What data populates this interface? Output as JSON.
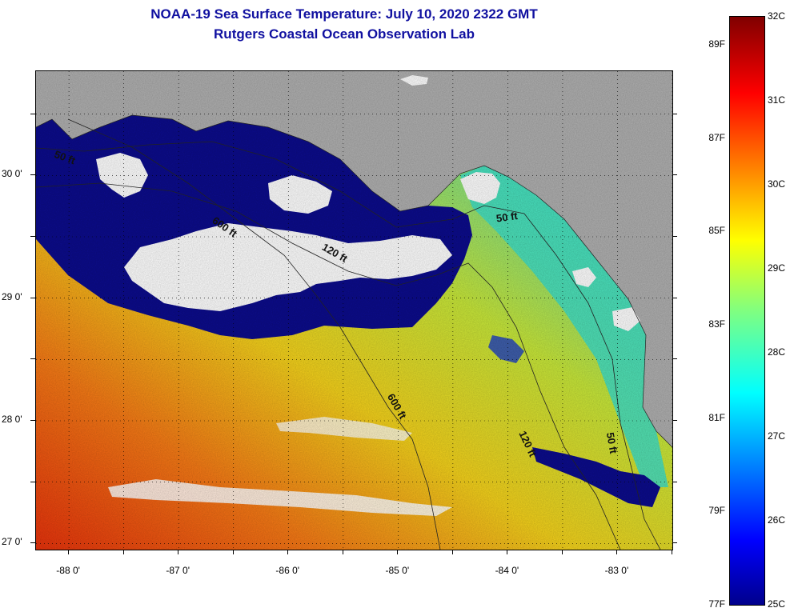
{
  "header": {
    "title": "NOAA-19 Sea Surface Temperature:  July 10, 2020 2322 GMT",
    "subtitle": "Rutgers Coastal Ocean Observation Lab"
  },
  "map": {
    "lon_range": [
      -88.3,
      -82.5
    ],
    "lat_range": [
      26.95,
      30.85
    ],
    "lat_ticks": [
      {
        "value": 30,
        "label": "30 0'"
      },
      {
        "value": 29,
        "label": "29 0'"
      },
      {
        "value": 28,
        "label": "28 0'"
      },
      {
        "value": 27,
        "label": "27 0'"
      }
    ],
    "lon_ticks": [
      {
        "value": -88,
        "label": "-88 0'"
      },
      {
        "value": -87,
        "label": "-87 0'"
      },
      {
        "value": -86,
        "label": "-86 0'"
      },
      {
        "value": -85,
        "label": "-85 0'"
      },
      {
        "value": -84,
        "label": "-84 0'"
      },
      {
        "value": -83,
        "label": "-83 0'"
      }
    ],
    "contour_labels": [
      {
        "text": "50 ft",
        "lon": -88.14,
        "lat": 30.15,
        "rotate": 20
      },
      {
        "text": "600 ft",
        "lon": -86.7,
        "lat": 29.62,
        "rotate": 35
      },
      {
        "text": "120 ft",
        "lon": -85.7,
        "lat": 29.4,
        "rotate": 30
      },
      {
        "text": "50 ft",
        "lon": -84.1,
        "lat": 29.62,
        "rotate": -8
      },
      {
        "text": "600 ft",
        "lon": -85.1,
        "lat": 28.2,
        "rotate": 60
      },
      {
        "text": "120 ft",
        "lon": -83.9,
        "lat": 27.9,
        "rotate": 65
      },
      {
        "text": "50 ft",
        "lon": -83.1,
        "lat": 27.9,
        "rotate": 80
      }
    ],
    "colors": {
      "land": "#b0b0b0",
      "cloud": "#ffffff",
      "cold": "#0c0c8c",
      "warm": "#f05a14"
    }
  },
  "colorbar": {
    "range_c": [
      25,
      32
    ],
    "celsius_labels": [
      {
        "value": 32,
        "label": "32C"
      },
      {
        "value": 31,
        "label": "31C"
      },
      {
        "value": 30,
        "label": "30C"
      },
      {
        "value": 29,
        "label": "29C"
      },
      {
        "value": 28,
        "label": "28C"
      },
      {
        "value": 27,
        "label": "27C"
      },
      {
        "value": 26,
        "label": "26C"
      },
      {
        "value": 25,
        "label": "25C"
      }
    ],
    "fahrenheit_labels": [
      {
        "value": 89,
        "label": "89F"
      },
      {
        "value": 87,
        "label": "87F"
      },
      {
        "value": 85,
        "label": "85F"
      },
      {
        "value": 83,
        "label": "83F"
      },
      {
        "value": 81,
        "label": "81F"
      },
      {
        "value": 79,
        "label": "79F"
      },
      {
        "value": 77,
        "label": "77F"
      }
    ]
  }
}
